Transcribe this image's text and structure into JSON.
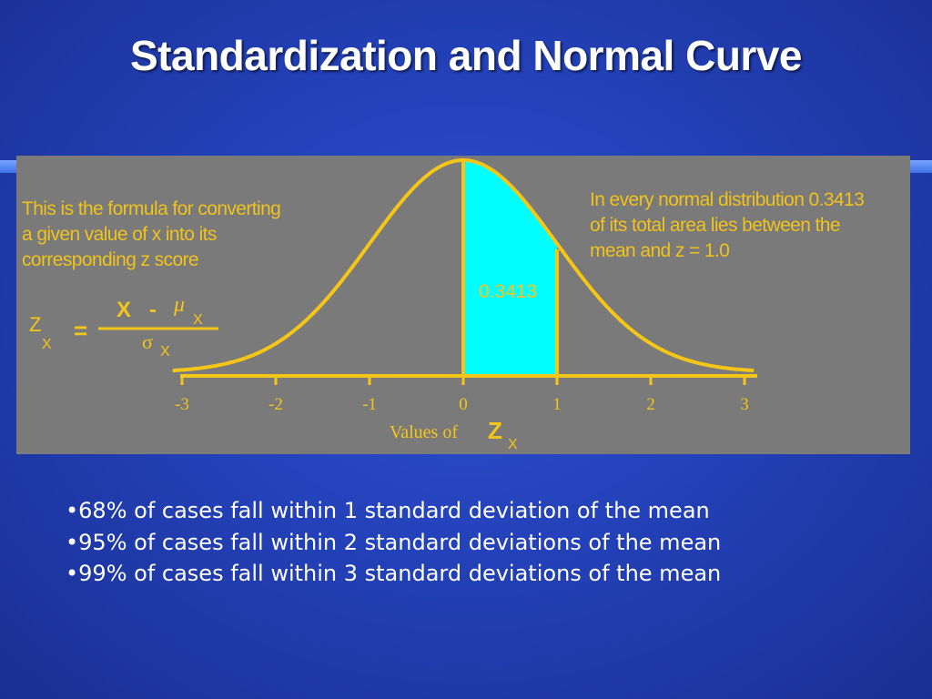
{
  "slide": {
    "title": "Standardization and Normal Curve",
    "bullets": [
      "•68% of cases fall within 1 standard deviation of the mean",
      "•95% of cases fall within 2 standard deviations of the mean",
      "•99% of cases fall within 3 standard deviations of the mean"
    ]
  },
  "figure": {
    "left_note": "This is the formula for converting\na given value of x into its\ncorresponding z score",
    "right_note": "In every normal distribution 0.3413\nof its total area lies between the\nmean and  z = 1.0",
    "area_label": "0.3413",
    "formula": {
      "lhs": "Z",
      "lhs_sub": "X",
      "equals": "=",
      "numerator_x": "X",
      "minus": "-",
      "mu": "μ",
      "mu_sub": "X",
      "sigma": "σ",
      "sigma_sub": "X"
    },
    "axis": {
      "ticks": [
        "-3",
        "-2",
        "-1",
        "0",
        "1",
        "2",
        "3"
      ],
      "label": "Values of",
      "label_var": "Z",
      "label_sub": "X"
    },
    "colors": {
      "panel": "#7a7a7a",
      "curve": "#f5c518",
      "shade": "#00ffff",
      "text": "#f0c21c"
    }
  }
}
